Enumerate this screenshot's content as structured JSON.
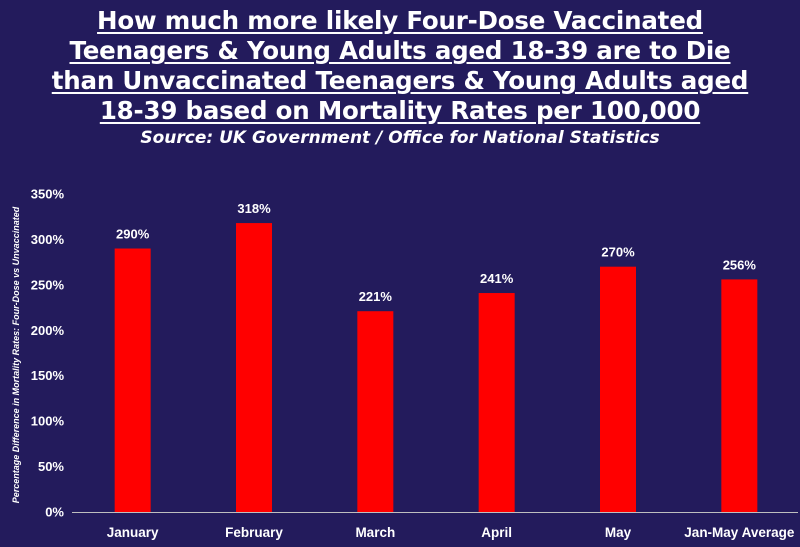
{
  "chart_data": {
    "type": "bar",
    "title": "How much more likely Four-Dose Vaccinated Teenagers & Young Adults aged 18-39 are to Die than Unvaccinated Teenagers & Young Adults aged 18-39 based on Mortality Rates per 100,000",
    "subtitle": "Source: UK Government / Office for National Statistics",
    "xlabel": "",
    "ylabel": "Percentage Difference in Mortality Rates: Four-Dose vs Unvaccinated",
    "categories": [
      "January",
      "February",
      "March",
      "April",
      "May",
      "Jan-May Average"
    ],
    "values": [
      290,
      318,
      221,
      241,
      270,
      256
    ],
    "value_labels": [
      "290%",
      "318%",
      "221%",
      "241%",
      "270%",
      "256%"
    ],
    "ylim": [
      0,
      350
    ],
    "yticks": [
      0,
      50,
      100,
      150,
      200,
      250,
      300,
      350
    ],
    "ytick_labels": [
      "0%",
      "50%",
      "100%",
      "150%",
      "200%",
      "250%",
      "300%",
      "350%"
    ],
    "grid": false,
    "legend": "none",
    "colors": {
      "background": "#231b5c",
      "bar": "#ff0000",
      "text": "#ffffff",
      "axis": "#bfbfbf"
    }
  }
}
